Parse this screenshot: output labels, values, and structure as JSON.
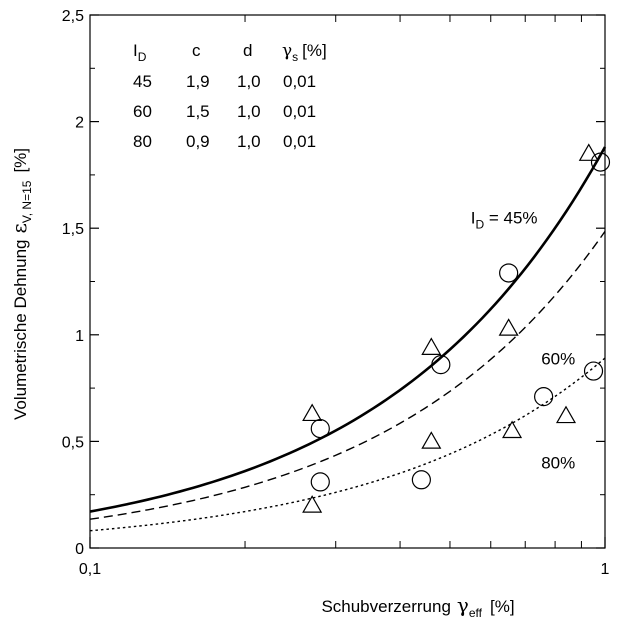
{
  "chart_data": {
    "type": "scatter",
    "xscale": "log",
    "xlim": [
      0.1,
      1
    ],
    "ylim": [
      0,
      2.5
    ],
    "xticks": [
      {
        "v": 0.1,
        "label": "0,1"
      },
      {
        "v": 1,
        "label": "1"
      }
    ],
    "yticks": [
      {
        "v": 0,
        "label": "0"
      },
      {
        "v": 0.5,
        "label": "0,5"
      },
      {
        "v": 1,
        "label": "1"
      },
      {
        "v": 1.5,
        "label": "1,5"
      },
      {
        "v": 2,
        "label": "2"
      },
      {
        "v": 2.5,
        "label": "2,5"
      }
    ],
    "xlabel": {
      "text": "Schubverzerrung",
      "symbol": "γ",
      "sub": "eff",
      "unit": "[%]"
    },
    "ylabel": {
      "text": "Volumetrische Dehnung",
      "symbol": "ε",
      "sub": "V, N=15",
      "unit": "[%]"
    },
    "table": {
      "header": {
        "id": "I",
        "id_sub": "D",
        "c": "c",
        "d": "d",
        "g": "γ",
        "g_sub": "s",
        "g_unit": "[%]"
      },
      "rows": [
        {
          "id": "45",
          "c": "1,9",
          "d": "1,0",
          "g": "0,01"
        },
        {
          "id": "60",
          "c": "1,5",
          "d": "1,0",
          "g": "0,01"
        },
        {
          "id": "80",
          "c": "0,9",
          "d": "1,0",
          "g": "0,01"
        }
      ]
    },
    "curves": [
      {
        "name": "I_D = 45%",
        "c": 1.9,
        "d": 1.0,
        "gs": 0.01,
        "style": "solid",
        "x": [
          0.1,
          0.13,
          0.17,
          0.22,
          0.28,
          0.36,
          0.46,
          0.6,
          0.78,
          1.0
        ]
      },
      {
        "name": "60%",
        "c": 1.5,
        "d": 1.0,
        "gs": 0.01,
        "style": "dashed",
        "x": [
          0.1,
          0.13,
          0.17,
          0.22,
          0.28,
          0.36,
          0.46,
          0.6,
          0.78,
          1.0
        ]
      },
      {
        "name": "80%",
        "c": 0.9,
        "d": 1.0,
        "gs": 0.01,
        "style": "dotted",
        "x": [
          0.1,
          0.13,
          0.17,
          0.22,
          0.28,
          0.36,
          0.46,
          0.6,
          0.78,
          1.0
        ]
      }
    ],
    "annotations": [
      {
        "text": "I",
        "sub": "D",
        "rest": " = 45%",
        "x": 0.6,
        "y": 1.55
      },
      {
        "text": "60%",
        "x": 0.7,
        "y": 0.89
      },
      {
        "text": "80%",
        "x": 0.7,
        "y": 0.4
      }
    ],
    "points": {
      "triangles": [
        {
          "x": 0.27,
          "y": 0.63
        },
        {
          "x": 0.27,
          "y": 0.2
        },
        {
          "x": 0.46,
          "y": 0.94
        },
        {
          "x": 0.46,
          "y": 0.5
        },
        {
          "x": 0.65,
          "y": 1.03
        },
        {
          "x": 0.66,
          "y": 0.55
        },
        {
          "x": 0.84,
          "y": 0.62
        },
        {
          "x": 0.93,
          "y": 1.85
        }
      ],
      "circles": [
        {
          "x": 0.28,
          "y": 0.56
        },
        {
          "x": 0.28,
          "y": 0.31
        },
        {
          "x": 0.44,
          "y": 0.32
        },
        {
          "x": 0.48,
          "y": 0.86
        },
        {
          "x": 0.65,
          "y": 1.29
        },
        {
          "x": 0.76,
          "y": 0.71
        },
        {
          "x": 0.95,
          "y": 0.83
        },
        {
          "x": 0.98,
          "y": 1.81
        }
      ]
    }
  }
}
